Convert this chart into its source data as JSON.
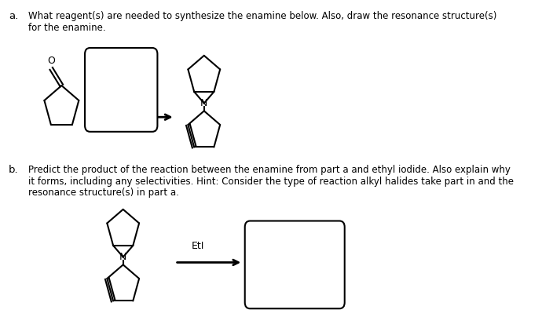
{
  "background_color": "#ffffff",
  "fig_width": 6.9,
  "fig_height": 4.18,
  "dpi": 100,
  "text_a_label": "a.",
  "text_a_line1": "What reagent(s) are needed to synthesize the enamine below. Also, draw the resonance structure(s)",
  "text_a_line2": "for the enamine.",
  "text_b_label": "b.",
  "text_b_line1": "Predict the product of the reaction between the enamine from part a and ethyl iodide. Also explain why",
  "text_b_line2": "it forms, including any selectivities. Hint: Consider the type of reaction alkyl halides take part in and the",
  "text_b_line3": "resonance structure(s) in part a.",
  "eti_label": "EtI",
  "font_size_text": 8.5,
  "font_size_label": 9.5
}
